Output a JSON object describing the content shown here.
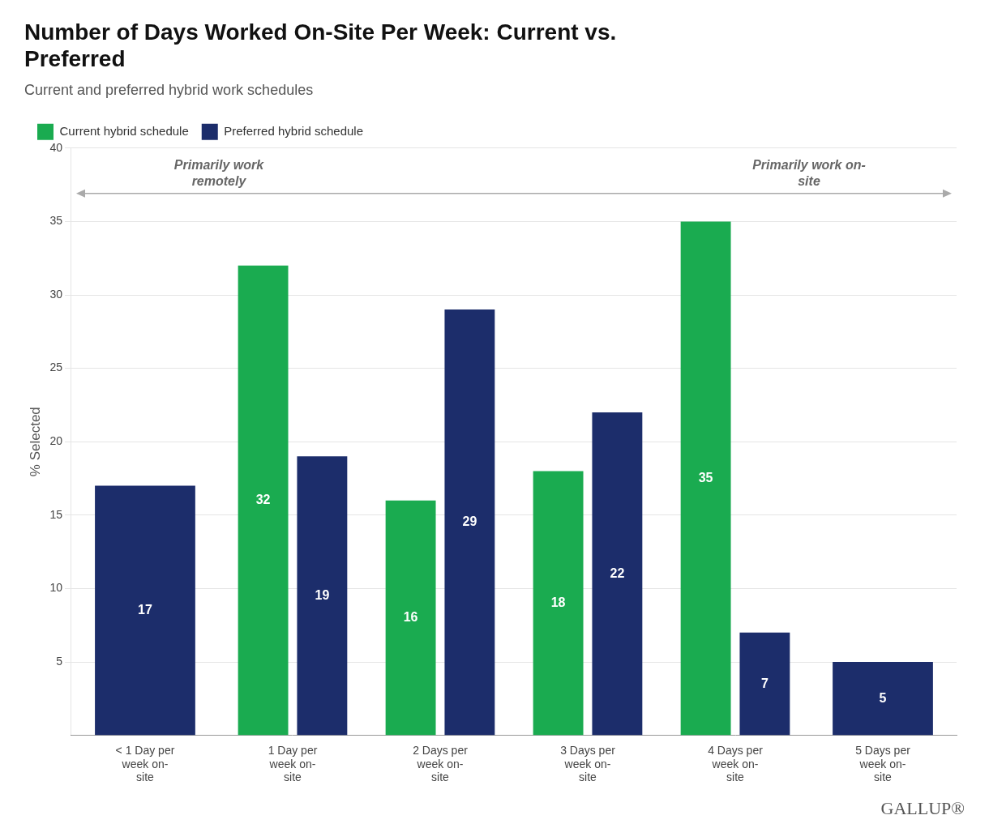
{
  "chart_data": {
    "type": "bar",
    "title": "Number of Days Worked On-Site Per Week: Current vs.\nPreferred",
    "subtitle": "Current and preferred hybrid work schedules",
    "ylabel": "% Selected",
    "categories": [
      "< 1 Day per\nweek on-\nsite",
      "1 Day per\nweek on-\nsite",
      "2 Days per\nweek on-\nsite",
      "3 Days per\nweek on-\nsite",
      "4 Days per\nweek on-\nsite",
      "5 Days per\nweek on-\nsite"
    ],
    "series": [
      {
        "name": "Current hybrid schedule",
        "color": "#1aab50",
        "values": [
          null,
          32,
          16,
          18,
          35,
          null
        ]
      },
      {
        "name": "Preferred hybrid schedule",
        "color": "#1c2d6b",
        "values": [
          17,
          19,
          29,
          22,
          7,
          5
        ]
      }
    ],
    "ylim": [
      0,
      40
    ],
    "yticks": [
      5,
      10,
      15,
      20,
      25,
      30,
      35,
      40
    ],
    "grid": true,
    "legend": "upper left",
    "data_labels": true,
    "annotations": [
      "Primarily work\nremotely",
      "Primarily work on-\nsite"
    ],
    "source": "GALLUP®"
  }
}
